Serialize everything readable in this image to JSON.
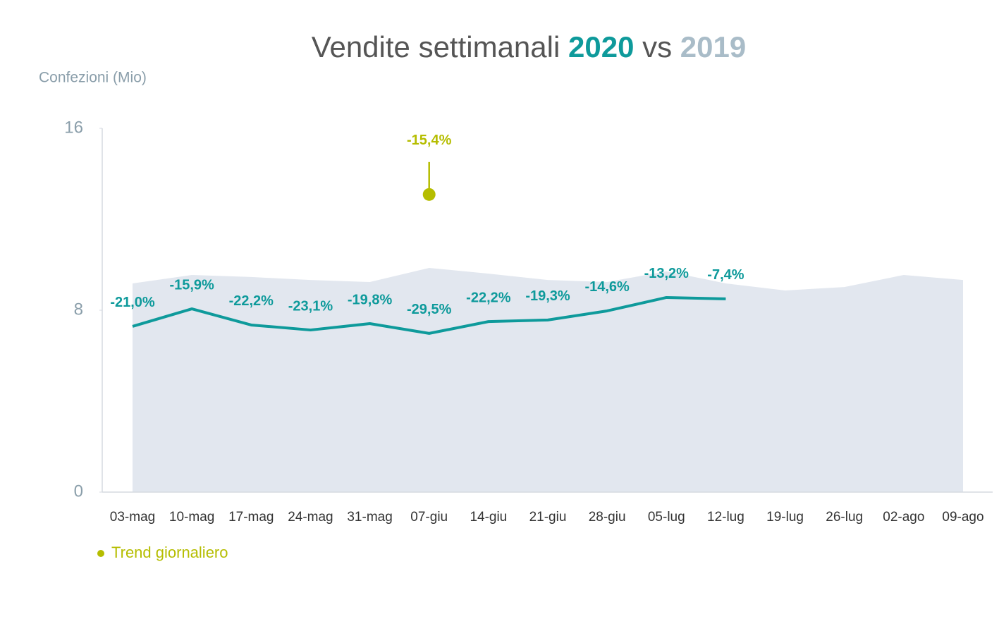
{
  "chart_data": {
    "type": "line",
    "title": "Vendite settimanali",
    "title_connector": "vs",
    "y_label": "Confezioni (Mio)",
    "ylim": [
      0,
      16
    ],
    "yticks": [
      0,
      8,
      16
    ],
    "categories": [
      "03-mag",
      "10-mag",
      "17-mag",
      "24-mag",
      "31-mag",
      "07-giu",
      "14-giu",
      "21-giu",
      "28-giu",
      "05-lug",
      "12-lug",
      "19-lug",
      "26-lug",
      "02-ago",
      "09-ago"
    ],
    "series": [
      {
        "name": "2020",
        "kind": "line",
        "color": "#0e9a9b",
        "label_color": "#0e9a9b",
        "values": [
          7.29,
          8.06,
          7.35,
          7.13,
          7.41,
          6.98,
          7.5,
          7.57,
          7.97,
          8.56,
          8.5,
          null,
          null,
          null,
          null
        ],
        "labels": [
          "-21,0%",
          "-15,9%",
          "-22,2%",
          "-23,1%",
          "-19,8%",
          "-29,5%",
          "-22,2%",
          "-19,3%",
          "-14,6%",
          "-13,2%",
          "-7,4%",
          null,
          null,
          null,
          null
        ]
      },
      {
        "name": "2019",
        "kind": "area",
        "color": "#e2e7ef",
        "label_color": "#a9bcc8",
        "values": [
          9.18,
          9.55,
          9.46,
          9.33,
          9.24,
          9.86,
          9.61,
          9.33,
          9.24,
          9.71,
          9.18,
          8.87,
          9.02,
          9.55,
          9.33
        ]
      },
      {
        "name": "Trend giornaliero",
        "kind": "point",
        "legend": true,
        "color": "#b5bd00",
        "label_color": "#b5bd00",
        "values": [
          null,
          null,
          null,
          null,
          null,
          13.09,
          null,
          null,
          null,
          null,
          null,
          null,
          null,
          null,
          null
        ],
        "labels": [
          null,
          null,
          null,
          null,
          null,
          "-15,4%",
          null,
          null,
          null,
          null,
          null,
          null,
          null,
          null,
          null
        ]
      }
    ]
  }
}
